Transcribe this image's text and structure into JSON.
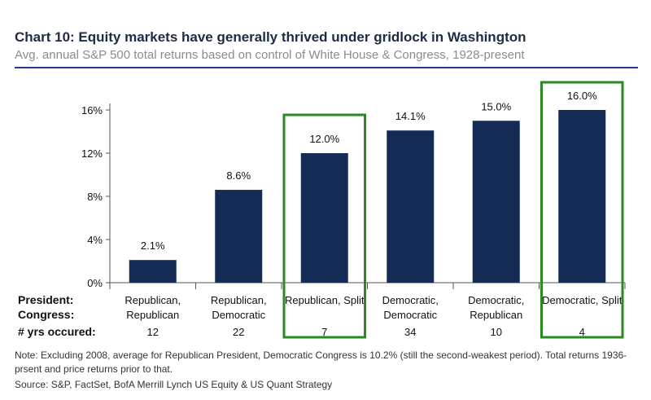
{
  "title": "Chart 10: Equity markets have generally thrived under gridlock in Washington",
  "subtitle": "Avg. annual S&P 500 total returns based on control of White House & Congress, 1928-present",
  "note": "Note: Excluding 2008, average for Republican President, Democratic Congress is 10.2% (still the second-weakest period). Total returns 1936-prsent and price returns prior to that.",
  "source": "Source: S&P, FactSet, BofA Merrill Lynch US Equity & US Quant Strategy",
  "row_labels": {
    "president": "President:",
    "congress": "Congress:",
    "years": "# yrs occured:"
  },
  "colors": {
    "bar": "#132b55",
    "highlight": "#2a8a1f",
    "axis": "#555555"
  },
  "chart_data": {
    "type": "bar",
    "categories": [
      {
        "line1": "Republican,",
        "line2": "Republican",
        "years": "12"
      },
      {
        "line1": "Republican,",
        "line2": "Democratic",
        "years": "22"
      },
      {
        "line1": "Republican, Split",
        "line2": "",
        "years": "7"
      },
      {
        "line1": "Democratic,",
        "line2": "Democratic",
        "years": "34"
      },
      {
        "line1": "Democratic,",
        "line2": "Republican",
        "years": "10"
      },
      {
        "line1": "Democratic, Split",
        "line2": "",
        "years": "4"
      }
    ],
    "values": [
      2.1,
      8.6,
      12.0,
      14.1,
      15.0,
      16.0
    ],
    "data_labels": [
      "2.1%",
      "8.6%",
      "12.0%",
      "14.1%",
      "15.0%",
      "16.0%"
    ],
    "highlighted": [
      2,
      5
    ],
    "ylim": [
      0,
      16
    ],
    "yticks": [
      0,
      4,
      8,
      12,
      16
    ],
    "ytick_labels": [
      "0%",
      "4%",
      "8%",
      "12%",
      "16%"
    ],
    "xlabel": "",
    "ylabel": ""
  }
}
